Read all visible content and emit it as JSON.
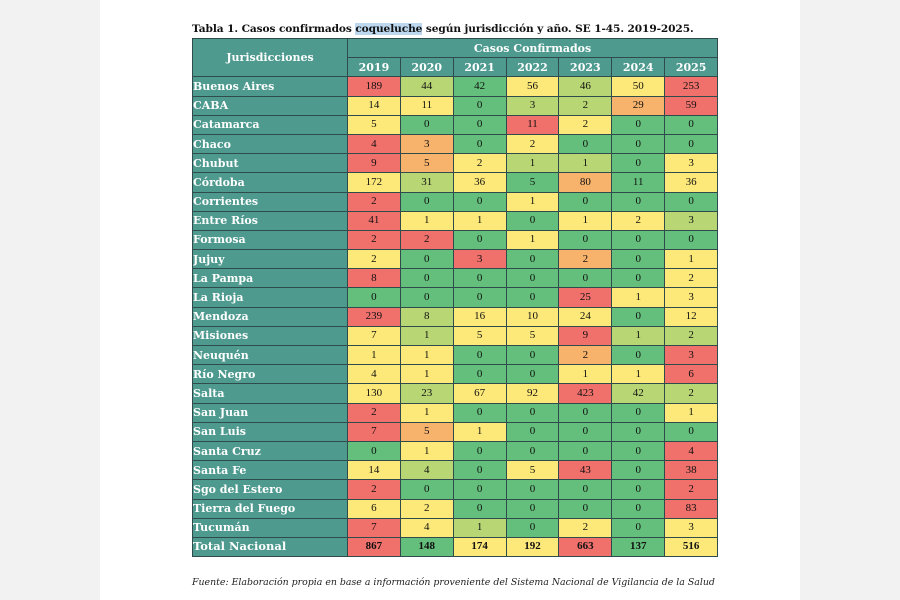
{
  "title": {
    "before": "Tabla 1. Casos confirmados ",
    "highlight": "coqueluche",
    "after": " según jurisdicción y año. SE 1-45. 2019-2025."
  },
  "table": {
    "jurisdiction_header": "Jurisdicciones",
    "cases_header": "Casos Confirmados",
    "years": [
      "2019",
      "2020",
      "2021",
      "2022",
      "2023",
      "2024",
      "2025"
    ],
    "rows": [
      {
        "name": "Buenos Aires",
        "values": [
          "189",
          "44",
          "42",
          "56",
          "46",
          "50",
          "253"
        ]
      },
      {
        "name": "CABA",
        "values": [
          "14",
          "11",
          "0",
          "3",
          "2",
          "29",
          "59"
        ]
      },
      {
        "name": "Catamarca",
        "values": [
          "5",
          "0",
          "0",
          "11",
          "2",
          "0",
          "0"
        ]
      },
      {
        "name": "Chaco",
        "values": [
          "4",
          "3",
          "0",
          "2",
          "0",
          "0",
          "0"
        ]
      },
      {
        "name": "Chubut",
        "values": [
          "9",
          "5",
          "2",
          "1",
          "1",
          "0",
          "3"
        ]
      },
      {
        "name": "Córdoba",
        "values": [
          "172",
          "31",
          "36",
          "5",
          "80",
          "11",
          "36"
        ]
      },
      {
        "name": "Corrientes",
        "values": [
          "2",
          "0",
          "0",
          "1",
          "0",
          "0",
          "0"
        ]
      },
      {
        "name": "Entre Ríos",
        "values": [
          "41",
          "1",
          "1",
          "0",
          "1",
          "2",
          "3"
        ]
      },
      {
        "name": "Formosa",
        "values": [
          "2",
          "2",
          "0",
          "1",
          "0",
          "0",
          "0"
        ]
      },
      {
        "name": "Jujuy",
        "values": [
          "2",
          "0",
          "3",
          "0",
          "2",
          "0",
          "1"
        ]
      },
      {
        "name": "La Pampa",
        "values": [
          "8",
          "0",
          "0",
          "0",
          "0",
          "0",
          "2"
        ]
      },
      {
        "name": "La Rioja",
        "values": [
          "0",
          "0",
          "0",
          "0",
          "25",
          "1",
          "3"
        ]
      },
      {
        "name": "Mendoza",
        "values": [
          "239",
          "8",
          "16",
          "10",
          "24",
          "0",
          "12"
        ]
      },
      {
        "name": "Misiones",
        "values": [
          "7",
          "1",
          "5",
          "5",
          "9",
          "1",
          "2"
        ]
      },
      {
        "name": "Neuquén",
        "values": [
          "1",
          "1",
          "0",
          "0",
          "2",
          "0",
          "3"
        ]
      },
      {
        "name": "Río Negro",
        "values": [
          "4",
          "1",
          "0",
          "0",
          "1",
          "1",
          "6"
        ]
      },
      {
        "name": "Salta",
        "values": [
          "130",
          "23",
          "67",
          "92",
          "423",
          "42",
          "2"
        ]
      },
      {
        "name": "San Juan",
        "values": [
          "2",
          "1",
          "0",
          "0",
          "0",
          "0",
          "1"
        ]
      },
      {
        "name": "San Luis",
        "values": [
          "7",
          "5",
          "1",
          "0",
          "0",
          "0",
          "0"
        ]
      },
      {
        "name": "Santa Cruz",
        "values": [
          "0",
          "1",
          "0",
          "0",
          "0",
          "0",
          "4"
        ]
      },
      {
        "name": "Santa Fe",
        "values": [
          "14",
          "4",
          "0",
          "5",
          "43",
          "0",
          "38"
        ]
      },
      {
        "name": "Sgo del Estero",
        "values": [
          "2",
          "0",
          "0",
          "0",
          "0",
          "0",
          "2"
        ]
      },
      {
        "name": "Tierra del Fuego",
        "values": [
          "6",
          "2",
          "0",
          "0",
          "0",
          "0",
          "83"
        ]
      },
      {
        "name": "Tucumán",
        "values": [
          "7",
          "4",
          "1",
          "0",
          "2",
          "0",
          "3"
        ]
      }
    ],
    "total": {
      "name": "Total Nacional",
      "values": [
        "867",
        "148",
        "174",
        "192",
        "663",
        "137",
        "516"
      ]
    },
    "heat_colors": {
      "red": "#f0706c",
      "orange": "#f7b36c",
      "yellow": "#fce97a",
      "lgreen": "#b8d774",
      "green": "#63bf7b"
    },
    "cell_color_classes": [
      [
        "red",
        "lgreen",
        "green",
        "yellow",
        "lgreen",
        "yellow",
        "red"
      ],
      [
        "yellow",
        "yellow",
        "green",
        "lgreen",
        "lgreen",
        "orange",
        "red"
      ],
      [
        "yellow",
        "green",
        "green",
        "red",
        "yellow",
        "green",
        "green"
      ],
      [
        "red",
        "orange",
        "green",
        "yellow",
        "green",
        "green",
        "green"
      ],
      [
        "red",
        "orange",
        "yellow",
        "lgreen",
        "lgreen",
        "green",
        "yellow"
      ],
      [
        "yellow",
        "lgreen",
        "yellow",
        "green",
        "orange",
        "green",
        "yellow"
      ],
      [
        "red",
        "green",
        "green",
        "yellow",
        "green",
        "green",
        "green"
      ],
      [
        "red",
        "yellow",
        "yellow",
        "green",
        "yellow",
        "yellow",
        "lgreen"
      ],
      [
        "red",
        "red",
        "green",
        "yellow",
        "green",
        "green",
        "green"
      ],
      [
        "yellow",
        "green",
        "red",
        "green",
        "orange",
        "green",
        "yellow"
      ],
      [
        "red",
        "green",
        "green",
        "green",
        "green",
        "green",
        "yellow"
      ],
      [
        "green",
        "green",
        "green",
        "green",
        "red",
        "yellow",
        "yellow"
      ],
      [
        "red",
        "lgreen",
        "yellow",
        "yellow",
        "yellow",
        "green",
        "yellow"
      ],
      [
        "yellow",
        "lgreen",
        "yellow",
        "yellow",
        "red",
        "lgreen",
        "lgreen"
      ],
      [
        "yellow",
        "yellow",
        "green",
        "green",
        "orange",
        "green",
        "red"
      ],
      [
        "yellow",
        "yellow",
        "green",
        "green",
        "yellow",
        "yellow",
        "red"
      ],
      [
        "yellow",
        "lgreen",
        "yellow",
        "yellow",
        "red",
        "lgreen",
        "lgreen"
      ],
      [
        "red",
        "yellow",
        "green",
        "green",
        "green",
        "green",
        "yellow"
      ],
      [
        "red",
        "orange",
        "yellow",
        "green",
        "green",
        "green",
        "green"
      ],
      [
        "green",
        "yellow",
        "green",
        "green",
        "green",
        "green",
        "red"
      ],
      [
        "yellow",
        "lgreen",
        "green",
        "yellow",
        "red",
        "green",
        "red"
      ],
      [
        "red",
        "green",
        "green",
        "green",
        "green",
        "green",
        "red"
      ],
      [
        "yellow",
        "yellow",
        "green",
        "green",
        "green",
        "green",
        "red"
      ],
      [
        "red",
        "yellow",
        "lgreen",
        "green",
        "yellow",
        "green",
        "yellow"
      ]
    ],
    "total_color_classes": [
      "red",
      "green",
      "yellow",
      "yellow",
      "red",
      "green",
      "yellow"
    ]
  },
  "source": "Fuente: Elaboración propia en base a información proveniente del Sistema Nacional de Vigilancia de la Salud"
}
